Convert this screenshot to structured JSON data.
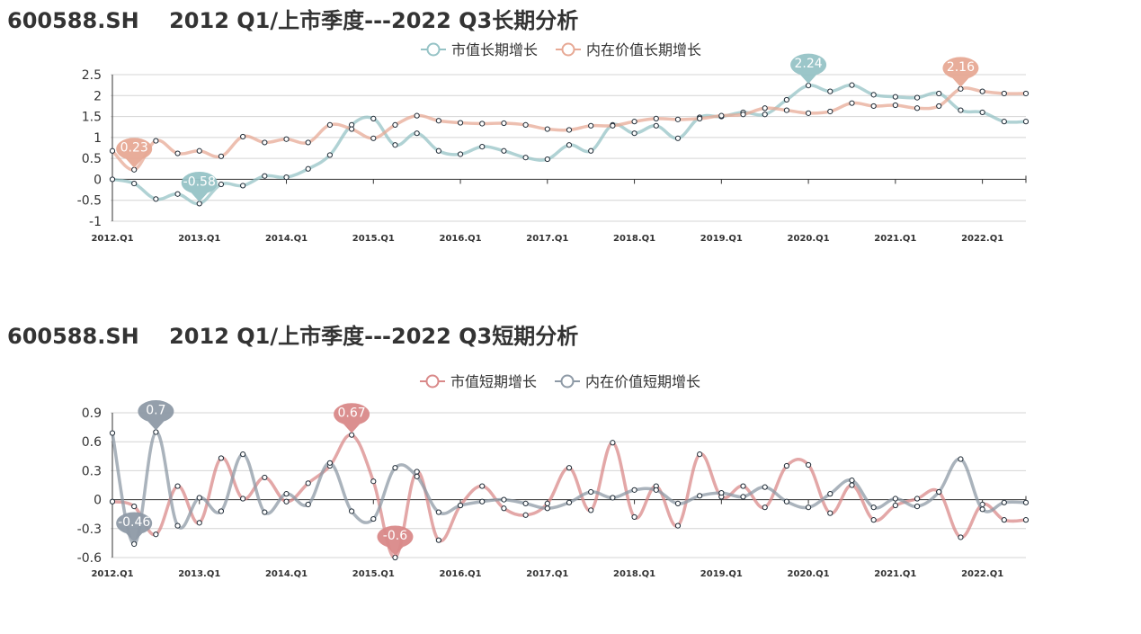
{
  "chart_data": [
    {
      "type": "line",
      "title": "600588.SH    2012 Q1/上市季度---2022 Q3长期分析",
      "xlabel": "",
      "ylabel": "",
      "ylim": [
        -1,
        2.5
      ],
      "yticks": [
        "2.5",
        "2",
        "1.5",
        "1",
        "0.5",
        "0",
        "-0.5",
        "-1"
      ],
      "xtick_labels": [
        "2012.Q1",
        "2013.Q1",
        "2014.Q1",
        "2015.Q1",
        "2016.Q1",
        "2017.Q1",
        "2018.Q1",
        "2019.Q1",
        "2020.Q1",
        "2021.Q1",
        "2022.Q1"
      ],
      "grid": true,
      "legend_position": "top-center",
      "x": [
        "2012.Q1",
        "2012.Q2",
        "2012.Q3",
        "2012.Q4",
        "2013.Q1",
        "2013.Q2",
        "2013.Q3",
        "2013.Q4",
        "2014.Q1",
        "2014.Q2",
        "2014.Q3",
        "2014.Q4",
        "2015.Q1",
        "2015.Q2",
        "2015.Q3",
        "2015.Q4",
        "2016.Q1",
        "2016.Q2",
        "2016.Q3",
        "2016.Q4",
        "2017.Q1",
        "2017.Q2",
        "2017.Q3",
        "2017.Q4",
        "2018.Q1",
        "2018.Q2",
        "2018.Q3",
        "2018.Q4",
        "2019.Q1",
        "2019.Q2",
        "2019.Q3",
        "2019.Q4",
        "2020.Q1",
        "2020.Q2",
        "2020.Q3",
        "2020.Q4",
        "2021.Q1",
        "2021.Q2",
        "2021.Q3",
        "2021.Q4",
        "2022.Q1",
        "2022.Q2",
        "2022.Q3"
      ],
      "series": [
        {
          "name": "市值长期增长",
          "color": "#96c3c6",
          "values": [
            0,
            -0.1,
            -0.47,
            -0.35,
            -0.58,
            -0.12,
            -0.15,
            0.08,
            0.05,
            0.25,
            0.58,
            1.3,
            1.45,
            0.82,
            1.1,
            0.68,
            0.6,
            0.78,
            0.68,
            0.52,
            0.48,
            0.82,
            0.68,
            1.3,
            1.1,
            1.28,
            0.98,
            1.48,
            1.5,
            1.6,
            1.55,
            1.9,
            2.24,
            2.1,
            2.25,
            2.02,
            1.97,
            1.95,
            2.05,
            1.65,
            1.6,
            1.38,
            1.38
          ],
          "highlights": [
            {
              "index": 4,
              "label": "-0.58"
            },
            {
              "index": 32,
              "label": "2.24"
            }
          ]
        },
        {
          "name": "内在价值长期增长",
          "color": "#e7a995",
          "values": [
            0.68,
            0.23,
            0.92,
            0.62,
            0.68,
            0.55,
            1.02,
            0.88,
            0.96,
            0.88,
            1.3,
            1.2,
            0.98,
            1.3,
            1.52,
            1.4,
            1.35,
            1.33,
            1.34,
            1.3,
            1.2,
            1.18,
            1.28,
            1.28,
            1.38,
            1.45,
            1.43,
            1.45,
            1.52,
            1.55,
            1.7,
            1.65,
            1.58,
            1.62,
            1.82,
            1.75,
            1.77,
            1.7,
            1.75,
            2.16,
            2.1,
            2.05,
            2.05
          ],
          "highlights": [
            {
              "index": 1,
              "label": "0.23"
            },
            {
              "index": 39,
              "label": "2.16"
            }
          ]
        }
      ]
    },
    {
      "type": "line",
      "title": "600588.SH    2012 Q1/上市季度---2022 Q3短期分析",
      "xlabel": "",
      "ylabel": "",
      "ylim": [
        -0.6,
        0.9
      ],
      "yticks": [
        "0.9",
        "0.6",
        "0.3",
        "0",
        "-0.3",
        "-0.6"
      ],
      "xtick_labels": [
        "2012.Q1",
        "2013.Q1",
        "2014.Q1",
        "2015.Q1",
        "2016.Q1",
        "2017.Q1",
        "2018.Q1",
        "2019.Q1",
        "2020.Q1",
        "2021.Q1",
        "2022.Q1"
      ],
      "grid": true,
      "legend_position": "top-center",
      "x": [
        "2012.Q1",
        "2012.Q2",
        "2012.Q3",
        "2012.Q4",
        "2013.Q1",
        "2013.Q2",
        "2013.Q3",
        "2013.Q4",
        "2014.Q1",
        "2014.Q2",
        "2014.Q3",
        "2014.Q4",
        "2015.Q1",
        "2015.Q2",
        "2015.Q3",
        "2015.Q4",
        "2016.Q1",
        "2016.Q2",
        "2016.Q3",
        "2016.Q4",
        "2017.Q1",
        "2017.Q2",
        "2017.Q3",
        "2017.Q4",
        "2018.Q1",
        "2018.Q2",
        "2018.Q3",
        "2018.Q4",
        "2019.Q1",
        "2019.Q2",
        "2019.Q3",
        "2019.Q4",
        "2020.Q1",
        "2020.Q2",
        "2020.Q3",
        "2020.Q4",
        "2021.Q1",
        "2021.Q2",
        "2021.Q3",
        "2021.Q4",
        "2022.Q1",
        "2022.Q2",
        "2022.Q3"
      ],
      "series": [
        {
          "name": "市值短期增长",
          "color": "#d98989",
          "values": [
            -0.02,
            -0.07,
            -0.36,
            0.14,
            -0.24,
            0.43,
            0.01,
            0.23,
            -0.02,
            0.17,
            0.35,
            0.67,
            0.19,
            -0.6,
            0.29,
            -0.42,
            -0.06,
            0.14,
            -0.09,
            -0.16,
            -0.04,
            0.33,
            -0.11,
            0.59,
            -0.18,
            0.14,
            -0.27,
            0.47,
            0.03,
            0.14,
            -0.08,
            0.35,
            0.36,
            -0.14,
            0.15,
            -0.21,
            -0.06,
            0.01,
            0.08,
            -0.39,
            -0.05,
            -0.21,
            -0.21
          ],
          "highlights": [
            {
              "index": 13,
              "label": "-0.6"
            },
            {
              "index": 11,
              "label": "0.67"
            }
          ]
        },
        {
          "name": "内在价值短期增长",
          "color": "#8e9aa6",
          "values": [
            0.69,
            -0.46,
            0.7,
            -0.27,
            0.02,
            -0.12,
            0.47,
            -0.13,
            0.06,
            -0.05,
            0.38,
            -0.12,
            -0.2,
            0.33,
            0.24,
            -0.13,
            -0.06,
            -0.02,
            0.0,
            -0.04,
            -0.09,
            -0.03,
            0.08,
            0.02,
            0.1,
            0.1,
            -0.04,
            0.04,
            0.07,
            0.03,
            0.13,
            -0.02,
            -0.08,
            0.06,
            0.2,
            -0.08,
            0.01,
            -0.07,
            0.08,
            0.42,
            -0.1,
            -0.03,
            -0.03
          ],
          "highlights": [
            {
              "index": 1,
              "label": "-0.46"
            },
            {
              "index": 2,
              "label": "0.7"
            }
          ]
        }
      ]
    }
  ]
}
